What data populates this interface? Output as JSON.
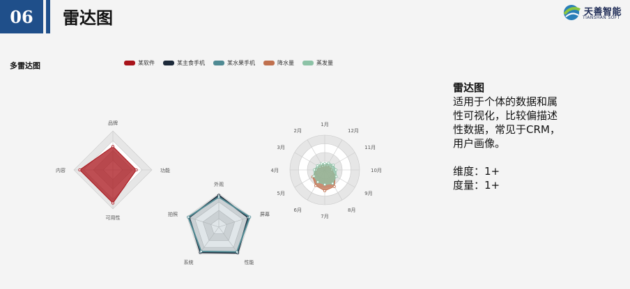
{
  "slide": {
    "number": "06",
    "title": "雷达图",
    "logo_name": "天善智能",
    "logo_sub": "TIANSHAN SOFT"
  },
  "panel": {
    "label": "多雷达图"
  },
  "legend": [
    {
      "name": "某软件",
      "color": "#a8131a"
    },
    {
      "name": "某主食手机",
      "color": "#1d2a3a"
    },
    {
      "name": "某水果手机",
      "color": "#4f8a93"
    },
    {
      "name": "降水量",
      "color": "#c0704e"
    },
    {
      "name": "蒸发量",
      "color": "#8cc2a6"
    }
  ],
  "description": {
    "title": "雷达图",
    "lines": [
      "适用于个体的数据和属",
      "性可视化，比较偏描述",
      "性数据，常见于CRM，",
      "用户画像。"
    ],
    "dimension": "维度：1+",
    "measure": "度量：1+"
  },
  "chart_data": [
    {
      "type": "radar",
      "indicators": [
        "品牌",
        "功能",
        "可用性",
        "内容"
      ],
      "max": 100,
      "series": [
        {
          "name": "某软件",
          "values": [
            60,
            60,
            85,
            85
          ],
          "color": "#a8131a"
        }
      ]
    },
    {
      "type": "radar",
      "indicators": [
        "外观",
        "屏幕",
        "性能",
        "系统",
        "拍照"
      ],
      "max": 100,
      "series": [
        {
          "name": "某主食手机",
          "values": [
            95,
            92,
            96,
            94,
            93
          ],
          "color": "#1d2a3a"
        },
        {
          "name": "某水果手机",
          "values": [
            90,
            97,
            92,
            90,
            96
          ],
          "color": "#4f8a93"
        }
      ]
    },
    {
      "type": "radar",
      "indicators": [
        "1月",
        "12月",
        "11月",
        "10月",
        "9月",
        "8月",
        "7月",
        "6月",
        "5月",
        "4月",
        "3月",
        "2月"
      ],
      "max": 100,
      "series": [
        {
          "name": "降水量",
          "values": [
            12,
            14,
            18,
            20,
            35,
            55,
            60,
            52,
            40,
            24,
            16,
            12
          ],
          "color": "#c0704e"
        },
        {
          "name": "蒸发量",
          "values": [
            18,
            22,
            28,
            32,
            38,
            45,
            42,
            40,
            36,
            30,
            24,
            20
          ],
          "color": "#8cc2a6"
        }
      ]
    }
  ]
}
